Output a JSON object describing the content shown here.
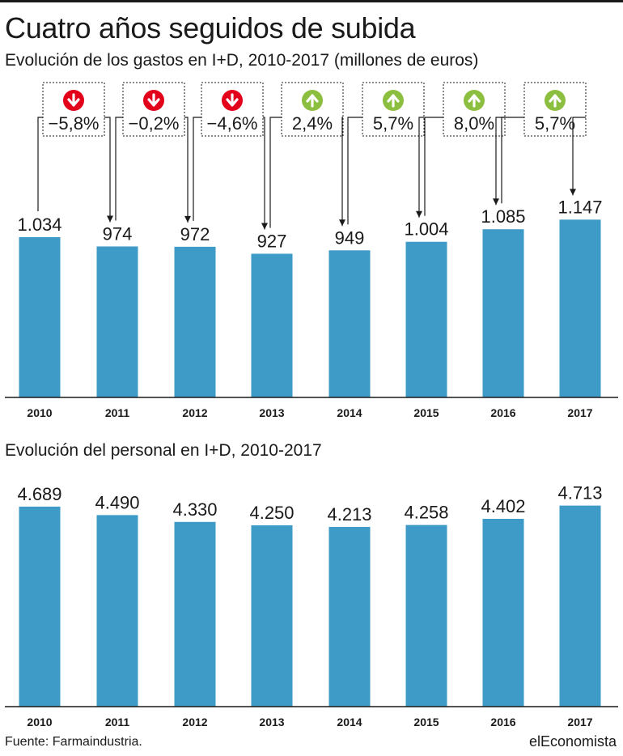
{
  "title": "Cuatro años seguidos de subida",
  "source": "Fuente: Farmaindustria.",
  "brand": "elEconomista",
  "colors": {
    "bar": "#3e9ac6",
    "down": "#e2001a",
    "up": "#8cbf3f"
  },
  "chart_data": [
    {
      "type": "bar",
      "title": "Evolución de los gastos en I+D, 2010-2017 (millones de euros)",
      "categories": [
        "2010",
        "2011",
        "2012",
        "2013",
        "2014",
        "2015",
        "2016",
        "2017"
      ],
      "values": [
        1034,
        974,
        972,
        927,
        949,
        1004,
        1085,
        1147
      ],
      "value_labels": [
        "1.034",
        "974",
        "972",
        "927",
        "949",
        "1.004",
        "1.085",
        "1.147"
      ],
      "changes": [
        {
          "label": "−5,8%",
          "direction": "down",
          "icon": "arrow-down-icon"
        },
        {
          "label": "−0,2%",
          "direction": "down",
          "icon": "arrow-down-icon"
        },
        {
          "label": "−4,6%",
          "direction": "down",
          "icon": "arrow-down-icon"
        },
        {
          "label": "2,4%",
          "direction": "up",
          "icon": "arrow-up-icon"
        },
        {
          "label": "5,7%",
          "direction": "up",
          "icon": "arrow-up-icon"
        },
        {
          "label": "8,0%",
          "direction": "up",
          "icon": "arrow-up-icon"
        },
        {
          "label": "5,7%",
          "direction": "up",
          "icon": "arrow-up-icon"
        }
      ]
    },
    {
      "type": "bar",
      "title": "Evolución del personal en I+D, 2010-2017",
      "categories": [
        "2010",
        "2011",
        "2012",
        "2013",
        "2014",
        "2015",
        "2016",
        "2017"
      ],
      "values": [
        4689,
        4490,
        4330,
        4250,
        4213,
        4258,
        4402,
        4713
      ],
      "value_labels": [
        "4.689",
        "4.490",
        "4.330",
        "4.250",
        "4.213",
        "4.258",
        "4.402",
        "4.713"
      ]
    }
  ]
}
